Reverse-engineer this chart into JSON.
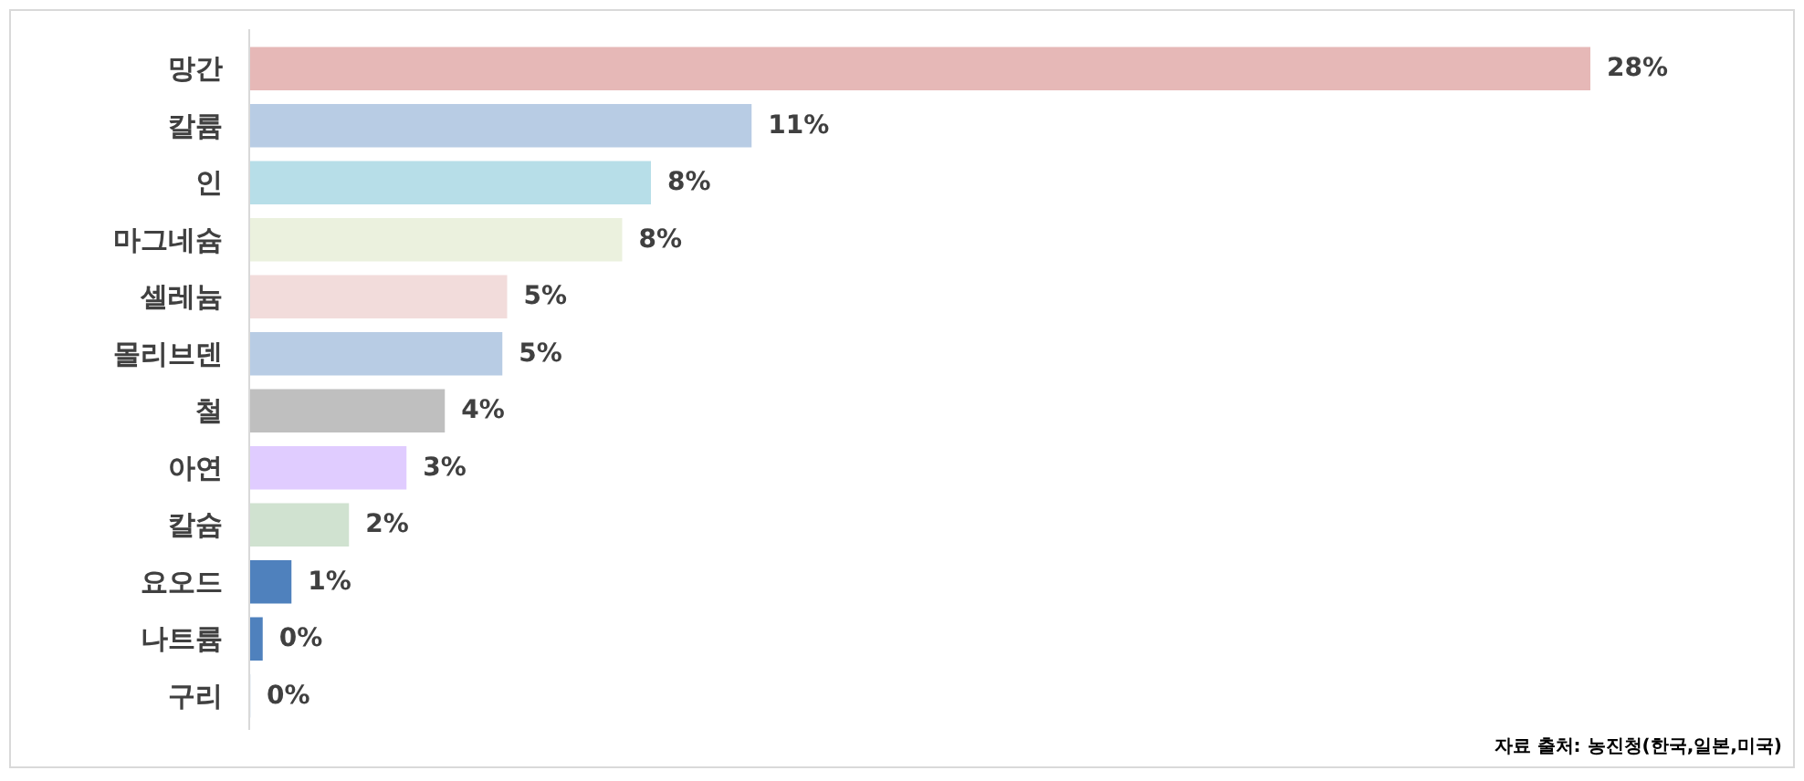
{
  "chart_data": {
    "type": "bar",
    "orientation": "horizontal",
    "categories": [
      "망간",
      "칼륨",
      "인",
      "마그네슘",
      "셀레늄",
      "몰리브덴",
      "철",
      "아연",
      "칼슘",
      "요오드",
      "나트륨",
      "구리"
    ],
    "values": [
      28,
      10.5,
      8.4,
      7.8,
      5.4,
      5.3,
      4.1,
      3.3,
      2.1,
      0.9,
      0.3,
      0.04
    ],
    "colors": [
      "#e6b8b7",
      "#b8cce4",
      "#b7dee8",
      "#ebf1de",
      "#f2dcdb",
      "#b8cce4",
      "#bfbfbf",
      "#e0ccff",
      "#d0e2d0",
      "#4f81bd",
      "#4f81bd",
      "#4f81bd"
    ],
    "value_labels": [
      "28%",
      "11%",
      "8%",
      "8%",
      "5%",
      "5%",
      "4%",
      "3%",
      "2%",
      "1%",
      "0%",
      "0%"
    ],
    "annotations": [
      "자료 출처: 농진청(한국,일본,미국)"
    ]
  }
}
